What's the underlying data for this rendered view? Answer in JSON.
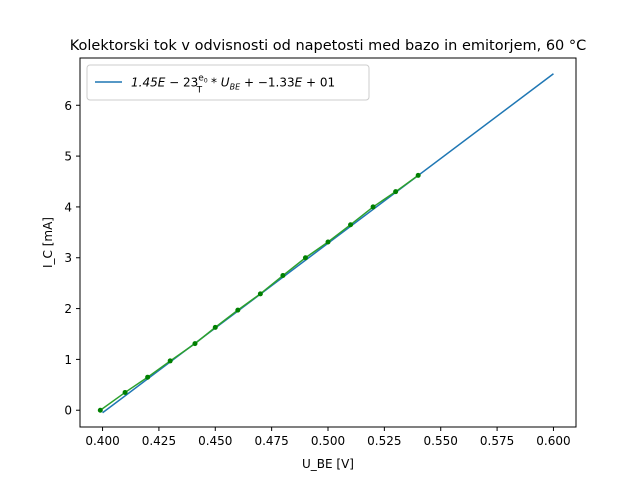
{
  "chart_data": {
    "type": "line",
    "title": "Kolektorski tok v odvisnosti od napetosti med bazo in emitorjem, 60 °C",
    "xlabel": "U_BE [V]",
    "ylabel": "I_C [mA]",
    "xlim": [
      0.39,
      0.61
    ],
    "ylim": [
      -0.33,
      6.93
    ],
    "x_ticks": [
      0.4,
      0.425,
      0.45,
      0.475,
      0.5,
      0.525,
      0.55,
      0.575,
      0.6
    ],
    "x_tick_labels": [
      "0.400",
      "0.425",
      "0.450",
      "0.475",
      "0.500",
      "0.525",
      "0.550",
      "0.575",
      "0.600"
    ],
    "y_ticks": [
      0,
      1,
      2,
      3,
      4,
      5,
      6
    ],
    "y_tick_labels": [
      "0",
      "1",
      "2",
      "3",
      "4",
      "5",
      "6"
    ],
    "grid": false,
    "legend_position": "top-left",
    "legend_label": "1.45E−23 (e₀/T) * U_BE + −1.33E+01",
    "series": [
      {
        "name": "1.45E−23 (e₀/T) * U_BE + −1.33E+01",
        "kind": "line",
        "color": "#1f77b4",
        "x": [
          0.4,
          0.6
        ],
        "y": [
          -0.05,
          6.62
        ]
      },
      {
        "kind": "line-markers",
        "color": "#2ca02c",
        "marker_color": "#008000",
        "x": [
          0.399,
          0.41,
          0.42,
          0.43,
          0.441,
          0.45,
          0.46,
          0.47,
          0.48,
          0.49,
          0.5,
          0.51,
          0.52,
          0.53,
          0.54
        ],
        "y": [
          0.0,
          0.35,
          0.65,
          0.97,
          1.31,
          1.63,
          1.97,
          2.29,
          2.65,
          3.0,
          3.31,
          3.65,
          4.0,
          4.3,
          4.62
        ]
      }
    ]
  }
}
